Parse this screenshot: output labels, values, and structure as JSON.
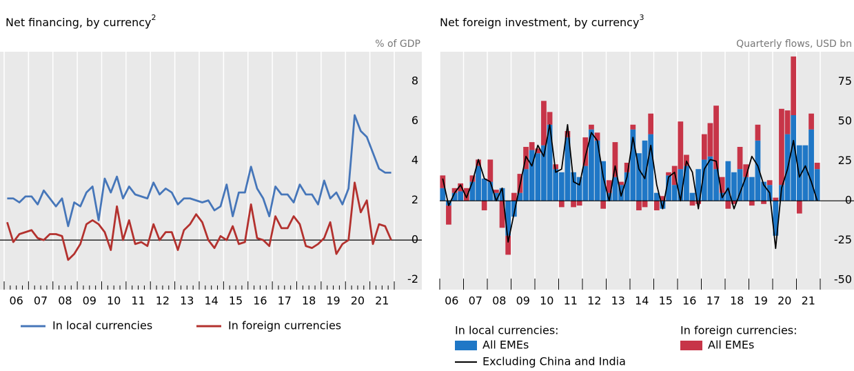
{
  "chart_data": [
    {
      "type": "line",
      "title": "Net financing, by currency",
      "title_note": "2",
      "unit_label": "% of GDP",
      "categories": [
        null,
        "06",
        null,
        null,
        null,
        "07",
        null,
        null,
        null,
        "08",
        null,
        null,
        null,
        "09",
        null,
        null,
        null,
        "10",
        null,
        null,
        null,
        "11",
        null,
        null,
        null,
        "12",
        null,
        null,
        null,
        "13",
        null,
        null,
        null,
        "14",
        null,
        null,
        null,
        "15",
        null,
        null,
        null,
        "16",
        null,
        null,
        null,
        "17",
        null,
        null,
        null,
        "18",
        null,
        null,
        null,
        "19",
        null,
        null,
        null,
        "20",
        null,
        null,
        null,
        "21",
        null,
        null
      ],
      "series": [
        {
          "name": "In local currencies",
          "color": "#4676b9",
          "values": [
            2.1,
            2.1,
            1.9,
            2.2,
            2.2,
            1.8,
            2.5,
            2.1,
            1.7,
            2.1,
            0.7,
            1.9,
            1.7,
            2.4,
            2.7,
            1.0,
            3.1,
            2.4,
            3.2,
            2.1,
            2.7,
            2.3,
            2.2,
            2.1,
            2.9,
            2.3,
            2.6,
            2.4,
            1.8,
            2.1,
            2.1,
            2.0,
            1.9,
            2.0,
            1.5,
            1.7,
            2.8,
            1.2,
            2.4,
            2.4,
            3.7,
            2.6,
            2.1,
            1.2,
            2.7,
            2.3,
            2.3,
            1.9,
            2.8,
            2.3,
            2.3,
            1.8,
            3.0,
            2.1,
            2.4,
            1.8,
            2.6,
            6.3,
            5.5,
            5.2,
            4.4,
            3.6,
            3.4,
            3.4
          ]
        },
        {
          "name": "In foreign currencies",
          "color": "#b3312e",
          "values": [
            0.9,
            -0.1,
            0.3,
            0.4,
            0.5,
            0.1,
            0.0,
            0.3,
            0.3,
            0.2,
            -1.0,
            -0.7,
            -0.2,
            0.8,
            1.0,
            0.8,
            0.4,
            -0.5,
            1.7,
            0.0,
            1.0,
            -0.2,
            -0.1,
            -0.3,
            0.8,
            0.0,
            0.4,
            0.4,
            -0.5,
            0.5,
            0.8,
            1.3,
            0.9,
            0.0,
            -0.4,
            0.2,
            0.0,
            0.7,
            -0.2,
            -0.1,
            1.8,
            0.1,
            0.0,
            -0.3,
            1.2,
            0.6,
            0.6,
            1.2,
            0.8,
            -0.3,
            -0.4,
            -0.2,
            0.1,
            0.9,
            -0.7,
            -0.2,
            0.0,
            2.9,
            1.4,
            2.0,
            -0.2,
            0.8,
            0.7,
            0.0
          ]
        }
      ],
      "ylim": [
        -2.5,
        9.5
      ],
      "yticks": [
        -2,
        0,
        2,
        4,
        6,
        8
      ]
    },
    {
      "type": "bar",
      "title": "Net foreign investment, by currency",
      "title_note": "3",
      "unit_label": "Quarterly flows, USD bn",
      "legend_titles": [
        "In local currencies:",
        "In foreign currencies:"
      ],
      "categories": [
        null,
        "06",
        null,
        null,
        null,
        "07",
        null,
        null,
        null,
        "08",
        null,
        null,
        null,
        "09",
        null,
        null,
        null,
        "10",
        null,
        null,
        null,
        "11",
        null,
        null,
        null,
        "12",
        null,
        null,
        null,
        "13",
        null,
        null,
        null,
        "14",
        null,
        null,
        null,
        "15",
        null,
        null,
        null,
        "16",
        null,
        null,
        null,
        "17",
        null,
        null,
        null,
        "18",
        null,
        null,
        null,
        "19",
        null,
        null,
        null,
        "20",
        null,
        null,
        null,
        "21",
        null,
        null
      ],
      "series": [
        {
          "name": "All EMEs",
          "type": "bar",
          "color": "#1f77c6",
          "values": [
            8,
            -3,
            5,
            6,
            0,
            12,
            22,
            14,
            12,
            5,
            8,
            -22,
            -10,
            5,
            20,
            32,
            30,
            35,
            48,
            20,
            18,
            40,
            18,
            15,
            22,
            45,
            38,
            25,
            5,
            15,
            10,
            18,
            45,
            30,
            38,
            42,
            5,
            -5,
            16,
            10,
            20,
            22,
            5,
            20,
            26,
            28,
            20,
            5,
            25,
            18,
            20,
            15,
            15,
            38,
            12,
            10,
            -22,
            10,
            42,
            54,
            35,
            35,
            45,
            20
          ]
        },
        {
          "name": "Excluding China and India",
          "type": "line",
          "color": "#000000",
          "values": [
            14,
            -3,
            5,
            10,
            2,
            12,
            26,
            14,
            12,
            0,
            8,
            -26,
            -8,
            10,
            28,
            22,
            35,
            28,
            48,
            18,
            20,
            48,
            12,
            10,
            28,
            43,
            38,
            15,
            0,
            22,
            3,
            15,
            40,
            20,
            14,
            35,
            10,
            -5,
            15,
            18,
            0,
            25,
            18,
            -5,
            20,
            26,
            25,
            2,
            8,
            -5,
            5,
            15,
            28,
            22,
            10,
            5,
            -30,
            8,
            20,
            38,
            15,
            22,
            12,
            0
          ]
        },
        {
          "name": "All EMEs",
          "type": "bar",
          "color": "#c73548",
          "values": [
            8,
            -12,
            3,
            5,
            8,
            4,
            4,
            -6,
            14,
            2,
            -17,
            -12,
            5,
            12,
            14,
            5,
            3,
            28,
            8,
            3,
            -4,
            4,
            -4,
            -3,
            18,
            3,
            5,
            -5,
            8,
            22,
            2,
            6,
            3,
            -6,
            -4,
            13,
            -6,
            3,
            2,
            12,
            30,
            7,
            -3,
            -2,
            16,
            21,
            40,
            10,
            -5,
            -2,
            14,
            8,
            -3,
            10,
            -2,
            3,
            2,
            48,
            15,
            37,
            -8,
            0,
            10,
            4
          ]
        }
      ],
      "ylim": [
        -56,
        94
      ],
      "yticks": [
        -50,
        -25,
        0,
        25,
        50,
        75
      ]
    }
  ]
}
